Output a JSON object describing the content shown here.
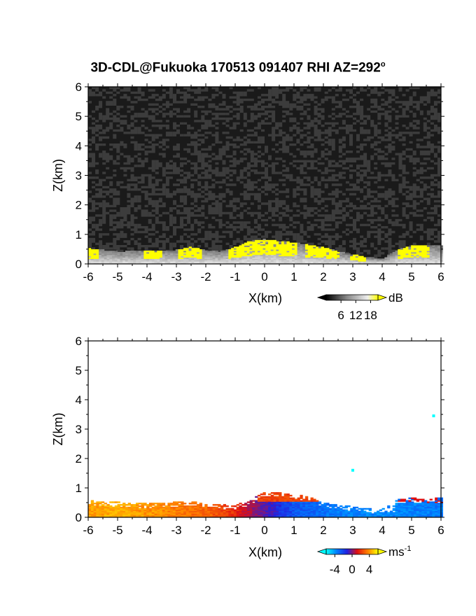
{
  "title": "3D-CDL@Fukuoka 170513 091407 RHI AZ=292",
  "title_sup": "o",
  "chart_data": [
    {
      "type": "heatmap",
      "name": "reflectivity",
      "xlabel": "X(km)",
      "ylabel": "Z(km)",
      "xlim": [
        -6,
        6
      ],
      "ylim": [
        0,
        6
      ],
      "xticks": [
        "-6",
        "-5",
        "-4",
        "-3",
        "-2",
        "-1",
        "0",
        "1",
        "2",
        "3",
        "4",
        "5",
        "6"
      ],
      "yticks": [
        "0",
        "1",
        "2",
        "3",
        "4",
        "5",
        "6"
      ],
      "colorbar": {
        "unit": "dB",
        "tick_labels": [
          "6",
          "12",
          "18"
        ],
        "ticks": [
          6,
          12,
          18
        ],
        "range": [
          0,
          21
        ],
        "colors": [
          "#000000",
          "#444444",
          "#888888",
          "#bbbbbb",
          "#eeeeee",
          "#ffff00"
        ]
      },
      "background": "noise 0-6 dB (black/gray) over whole domain",
      "echo_top_km": [
        [
          -6,
          0.5
        ],
        [
          -5.5,
          0.45
        ],
        [
          -5,
          0.4
        ],
        [
          -4,
          0.42
        ],
        [
          -3,
          0.45
        ],
        [
          -2.5,
          0.55
        ],
        [
          -2,
          0.45
        ],
        [
          -1.5,
          0.4
        ],
        [
          -1,
          0.55
        ],
        [
          -0.5,
          0.75
        ],
        [
          0,
          0.82
        ],
        [
          0.5,
          0.75
        ],
        [
          1,
          0.7
        ],
        [
          1.5,
          0.62
        ],
        [
          2,
          0.55
        ],
        [
          2.5,
          0.4
        ],
        [
          3,
          0.3
        ],
        [
          3.5,
          0.2
        ],
        [
          4,
          0.15
        ],
        [
          4.5,
          0.45
        ],
        [
          5,
          0.6
        ],
        [
          5.5,
          0.62
        ],
        [
          6,
          0.6
        ]
      ],
      "yellow_segments_km": [
        [
          -6,
          -5.7
        ],
        [
          -4.2,
          -3.5
        ],
        [
          -3,
          -2.2
        ],
        [
          -1.3,
          1.1
        ],
        [
          1.3,
          2.5
        ],
        [
          2.9,
          3.4
        ],
        [
          4.5,
          5.6
        ]
      ]
    },
    {
      "type": "heatmap",
      "name": "doppler-velocity",
      "xlabel": "X(km)",
      "ylabel": "Z(km)",
      "xlim": [
        -6,
        6
      ],
      "ylim": [
        0,
        6
      ],
      "xticks": [
        "-6",
        "-5",
        "-4",
        "-3",
        "-2",
        "-1",
        "0",
        "1",
        "2",
        "3",
        "4",
        "5",
        "6"
      ],
      "yticks": [
        "0",
        "1",
        "2",
        "3",
        "4",
        "5",
        "6"
      ],
      "colorbar": {
        "unit": "ms",
        "unit_sup": "-1",
        "tick_labels": [
          "-4",
          "0",
          "4"
        ],
        "ticks": [
          -4,
          0,
          4
        ],
        "range": [
          -6,
          6
        ],
        "colors": [
          "#00ffff",
          "#0080ff",
          "#2020e0",
          "#e01010",
          "#ff8000",
          "#ffff00"
        ]
      },
      "velocity_profile_ms": [
        [
          -6,
          4.2
        ],
        [
          -5,
          4.5
        ],
        [
          -4,
          4
        ],
        [
          -3,
          3.6
        ],
        [
          -2,
          3
        ],
        [
          -1,
          1.8
        ],
        [
          -0.5,
          0.5
        ],
        [
          0,
          -0.4
        ],
        [
          0.5,
          -1.5
        ],
        [
          1,
          -2.6
        ],
        [
          2,
          -3.2
        ],
        [
          3,
          -3.6
        ],
        [
          4,
          -3.8
        ],
        [
          5,
          -3.6
        ],
        [
          6,
          -3.4
        ]
      ],
      "echo_top_km": [
        [
          -6,
          0.55
        ],
        [
          -5,
          0.5
        ],
        [
          -4,
          0.45
        ],
        [
          -3,
          0.5
        ],
        [
          -2.5,
          0.55
        ],
        [
          -2,
          0.45
        ],
        [
          -1,
          0.4
        ],
        [
          -0.5,
          0.55
        ],
        [
          0,
          0.85
        ],
        [
          0.5,
          0.85
        ],
        [
          1,
          0.75
        ],
        [
          1.5,
          0.7
        ],
        [
          2,
          0.5
        ],
        [
          2.5,
          0.4
        ],
        [
          3,
          0.35
        ],
        [
          3.5,
          0.3
        ],
        [
          4,
          0.25
        ],
        [
          4.5,
          0.6
        ],
        [
          5,
          0.65
        ],
        [
          5.5,
          0.6
        ],
        [
          6,
          0.65
        ]
      ],
      "isolated_points_km": [
        [
          3.0,
          1.6
        ],
        [
          5.75,
          3.45
        ]
      ]
    }
  ]
}
